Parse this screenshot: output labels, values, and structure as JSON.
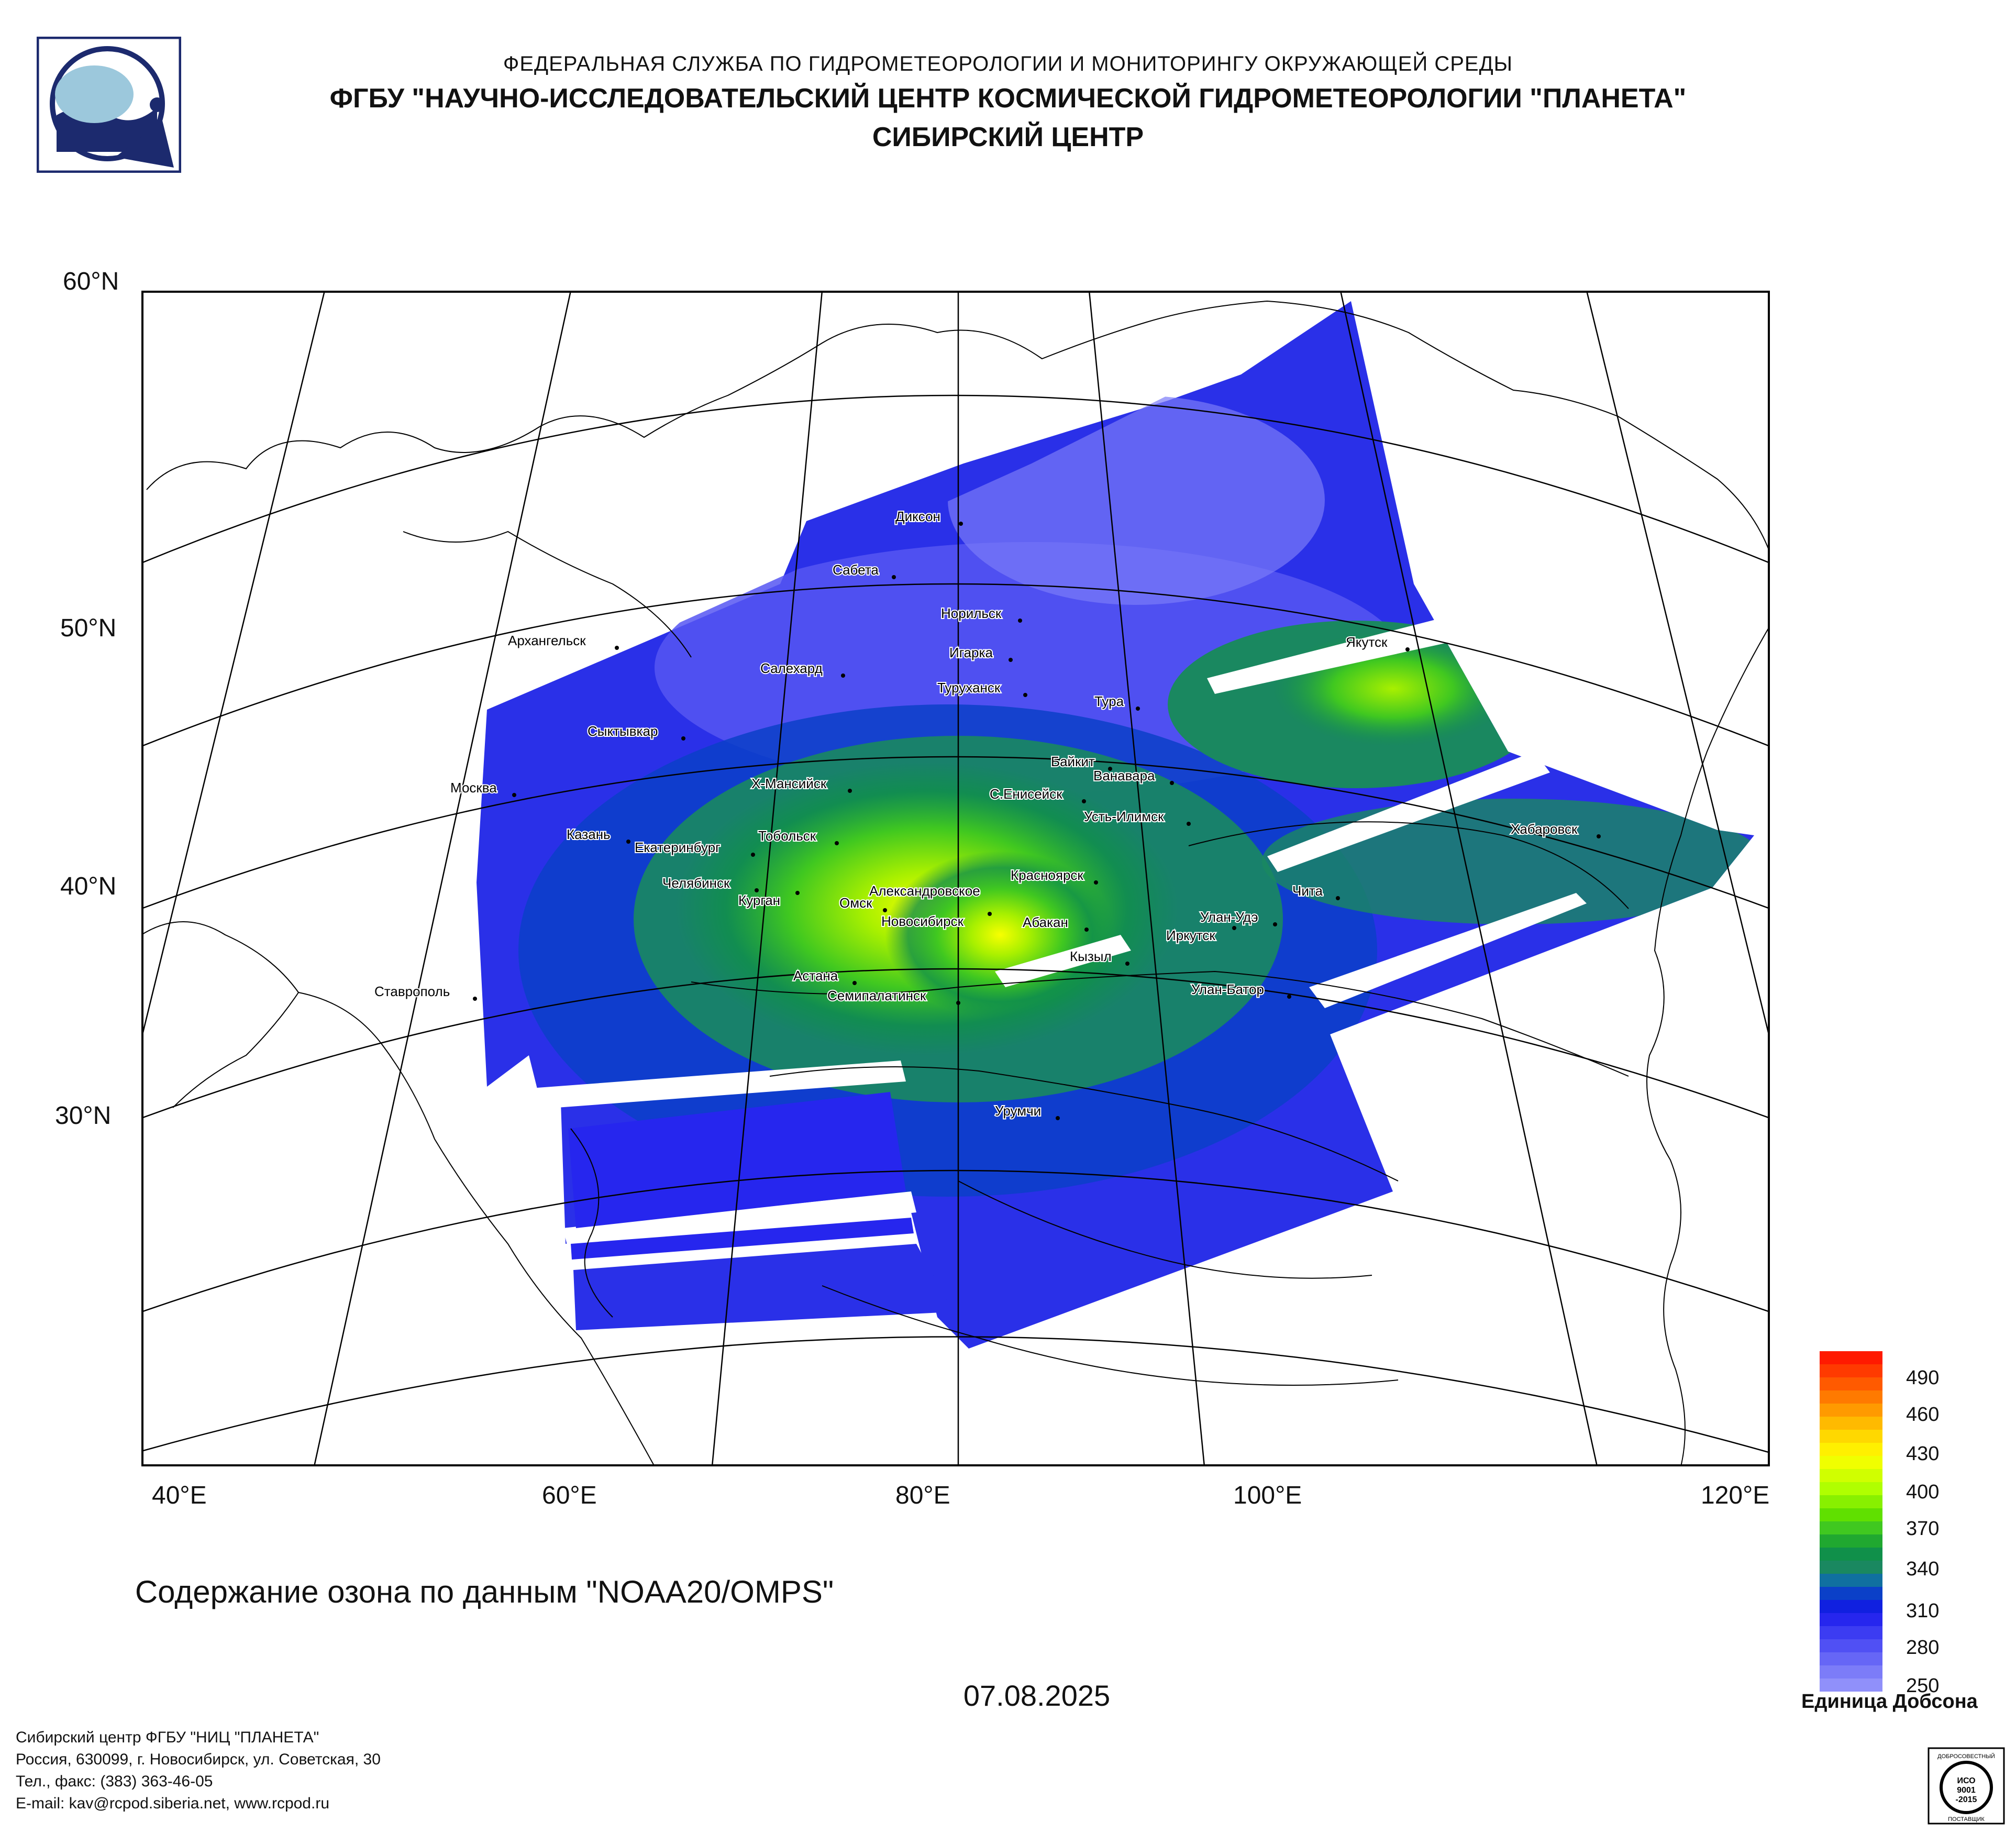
{
  "header": {
    "line1": "ФЕДЕРАЛЬНАЯ СЛУЖБА ПО ГИДРОМЕТЕОРОЛОГИИ И МОНИТОРИНГУ ОКРУЖАЮЩЕЙ СРЕДЫ",
    "line2": "ФГБУ \"НАУЧНО-ИССЛЕДОВАТЕЛЬСКИЙ ЦЕНТР КОСМИЧЕСКОЙ ГИДРОМЕТЕОРОЛОГИИ \"ПЛАНЕТА\"",
    "line3": "СИБИРСКИЙ ЦЕНТР"
  },
  "map": {
    "lat_labels": [
      "60°N",
      "50°N",
      "40°N",
      "30°N"
    ],
    "lon_labels": [
      "40°E",
      "60°E",
      "80°E",
      "100°E",
      "120°E"
    ],
    "cities": [
      "Диксон",
      "Сабета",
      "Норильск",
      "Игарка",
      "Салехард",
      "Туруханск",
      "Тура",
      "Якутск",
      "Архангельск",
      "Сыктывкар",
      "Москва",
      "Казань",
      "Екатеринбург",
      "Тобольск",
      "Х-Мансийск",
      "Байкит",
      "Ванавара",
      "С.Енисейск",
      "Усть-Илимск",
      "Хабаровск",
      "Челябинск",
      "Курган",
      "Александровское",
      "Омск",
      "Новосибирск",
      "Красноярск",
      "Абакан",
      "Кызыл",
      "Улан-Удэ",
      "Иркутск",
      "Чита",
      "Астана",
      "Семипалатинск",
      "Улан-Батор",
      "Ставрополь",
      "Урумчи"
    ]
  },
  "caption": "Содержание озона по данным \"NOAA20/OMPS\"",
  "date": "07.08.2025",
  "legend": {
    "ticks": [
      "490",
      "460",
      "430",
      "400",
      "370",
      "340",
      "310",
      "280",
      "250"
    ],
    "unit": "Единица Добсона",
    "colors": [
      "#ff1a00",
      "#ff3a00",
      "#ff5a00",
      "#ff7a00",
      "#ff9a00",
      "#ffba00",
      "#ffd800",
      "#fff000",
      "#f0ff00",
      "#d0ff00",
      "#b0ff00",
      "#88f000",
      "#60e000",
      "#40c820",
      "#20a830",
      "#10904a",
      "#1a8860",
      "#1070a0",
      "#0b40c8",
      "#1020e0",
      "#2626ee",
      "#3c3cf2",
      "#5050f4",
      "#6666f6",
      "#7c7cf8",
      "#9090fa"
    ]
  },
  "footer": {
    "line1": "Сибирский центр ФГБУ \"НИЦ \"ПЛАНЕТА\"",
    "line2": "Россия, 630099, г. Новосибирск, ул. Советская, 30",
    "line3": "Тел., факс: (383) 363-46-05",
    "line4": "E-mail: kav@rcpod.siberia.net, www.rcpod.ru"
  },
  "badge": {
    "top": "ДОБРОСОВЕСТНЫЙ",
    "mid1": "ИСО",
    "mid2": "9001",
    "mid3": "-2015",
    "bottom": "ПОСТАВЩИК"
  }
}
